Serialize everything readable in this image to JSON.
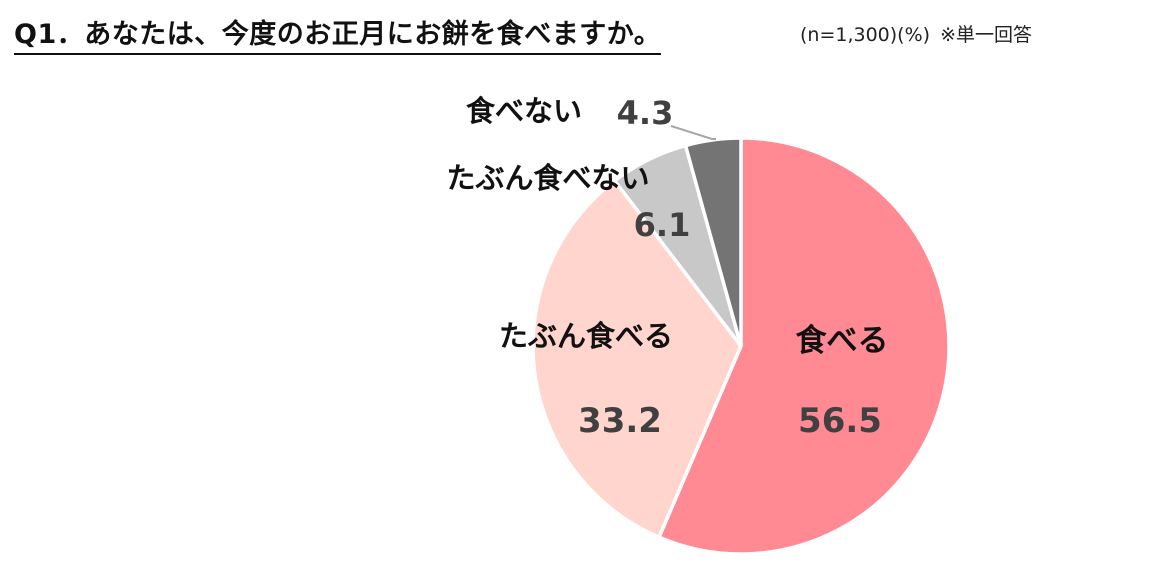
{
  "header": {
    "title": "Q1．あなたは、今度のお正月にお餅を食べますか。",
    "sample_note": "(n=1,300)(%)",
    "answer_type": "※単一回答"
  },
  "chart_data": {
    "type": "pie",
    "title": "Q1．あなたは、今度のお正月にお餅を食べますか。",
    "unit": "%",
    "n": "1,300",
    "start_angle_deg": 0,
    "direction": "clockwise",
    "slices": [
      {
        "label": "食べる",
        "value": 56.5,
        "color": "#FF8A94"
      },
      {
        "label": "たぶん食べる",
        "value": 33.2,
        "color": "#FFD5CE"
      },
      {
        "label": "たぶん食べない",
        "value": 6.1,
        "color": "#C8C8C8"
      },
      {
        "label": "食べない",
        "value": 4.3,
        "color": "#747474"
      }
    ]
  }
}
